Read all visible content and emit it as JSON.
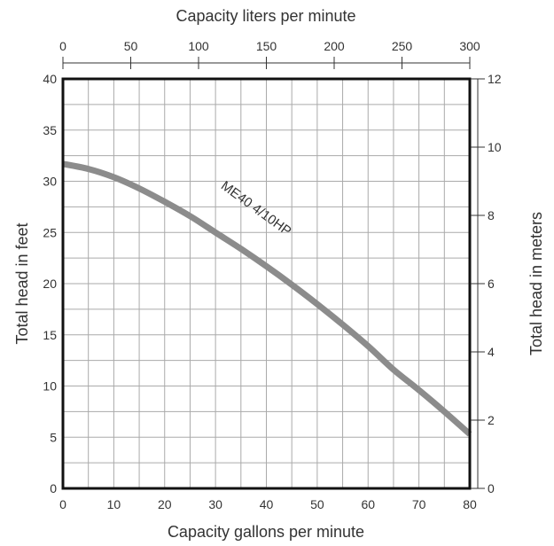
{
  "chart_data": {
    "type": "line",
    "title": "",
    "xlabel": "Capacity gallons per minute",
    "ylabel": "Total head in feet",
    "x2label": "Capacity liters per minute",
    "y2label": "Total head in meters",
    "xlim": [
      0,
      80
    ],
    "ylim": [
      0,
      40
    ],
    "x2lim": [
      0,
      300
    ],
    "y2lim": [
      0,
      12
    ],
    "x_ticks": [
      0,
      10,
      20,
      30,
      40,
      50,
      60,
      70,
      80
    ],
    "y_ticks": [
      0,
      5,
      10,
      15,
      20,
      25,
      30,
      35,
      40
    ],
    "x2_ticks": [
      0,
      50,
      100,
      150,
      200,
      250,
      300
    ],
    "y2_ticks": [
      0,
      2,
      4,
      6,
      8,
      10,
      12
    ],
    "grid": true,
    "line_color": "#8c8c8c",
    "series": [
      {
        "name": "ME40 4/10HP",
        "x": [
          0,
          5,
          10,
          15,
          20,
          25,
          30,
          35,
          40,
          45,
          50,
          55,
          60,
          65,
          70,
          75,
          80
        ],
        "y": [
          31.7,
          31.2,
          30.4,
          29.3,
          28.0,
          26.6,
          25.0,
          23.4,
          21.7,
          19.9,
          18.0,
          16.0,
          13.9,
          11.6,
          9.6,
          7.5,
          5.3
        ]
      }
    ]
  }
}
